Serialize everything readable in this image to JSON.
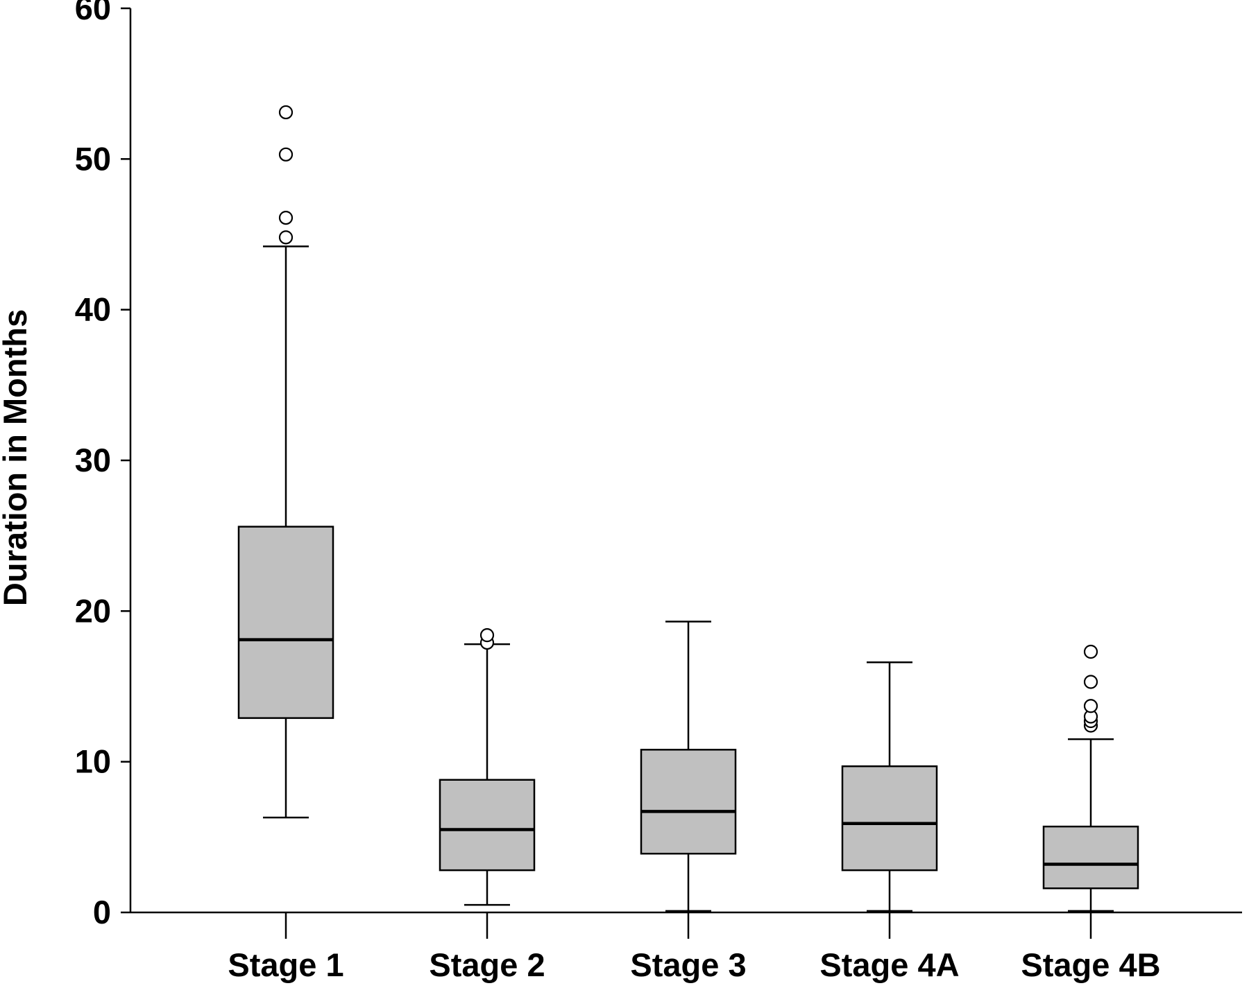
{
  "chart_data": {
    "type": "box",
    "title": "",
    "xlabel": "",
    "ylabel": "Duration in Months",
    "ylim": [
      0,
      60
    ],
    "y_ticks": [
      "0",
      "10",
      "20",
      "30",
      "40",
      "50",
      "60"
    ],
    "grid": false,
    "categories": [
      "Stage 1",
      "Stage 2",
      "Stage 3",
      "Stage 4A",
      "Stage 4B"
    ],
    "box_fill_color": "#c0c0c0",
    "line_color": "#000000",
    "boxes": [
      {
        "category": "Stage 1",
        "whisker_low": 6.3,
        "q1": 12.9,
        "median": 18.1,
        "q3": 25.6,
        "whisker_high": 44.2,
        "outliers": [
          44.8,
          46.1,
          50.3,
          53.1
        ]
      },
      {
        "category": "Stage 2",
        "whisker_low": 0.5,
        "q1": 2.8,
        "median": 5.5,
        "q3": 8.8,
        "whisker_high": 17.8,
        "outliers": [
          17.9,
          18.4
        ]
      },
      {
        "category": "Stage 3",
        "whisker_low": 0.1,
        "q1": 3.9,
        "median": 6.7,
        "q3": 10.8,
        "whisker_high": 19.3,
        "outliers": []
      },
      {
        "category": "Stage 4A",
        "whisker_low": 0.1,
        "q1": 2.8,
        "median": 5.9,
        "q3": 9.7,
        "whisker_high": 16.6,
        "outliers": []
      },
      {
        "category": "Stage 4B",
        "whisker_low": 0.1,
        "q1": 1.6,
        "median": 3.2,
        "q3": 5.7,
        "whisker_high": 11.5,
        "outliers": [
          12.4,
          12.7,
          13.0,
          13.7,
          15.3,
          17.3
        ]
      }
    ]
  }
}
